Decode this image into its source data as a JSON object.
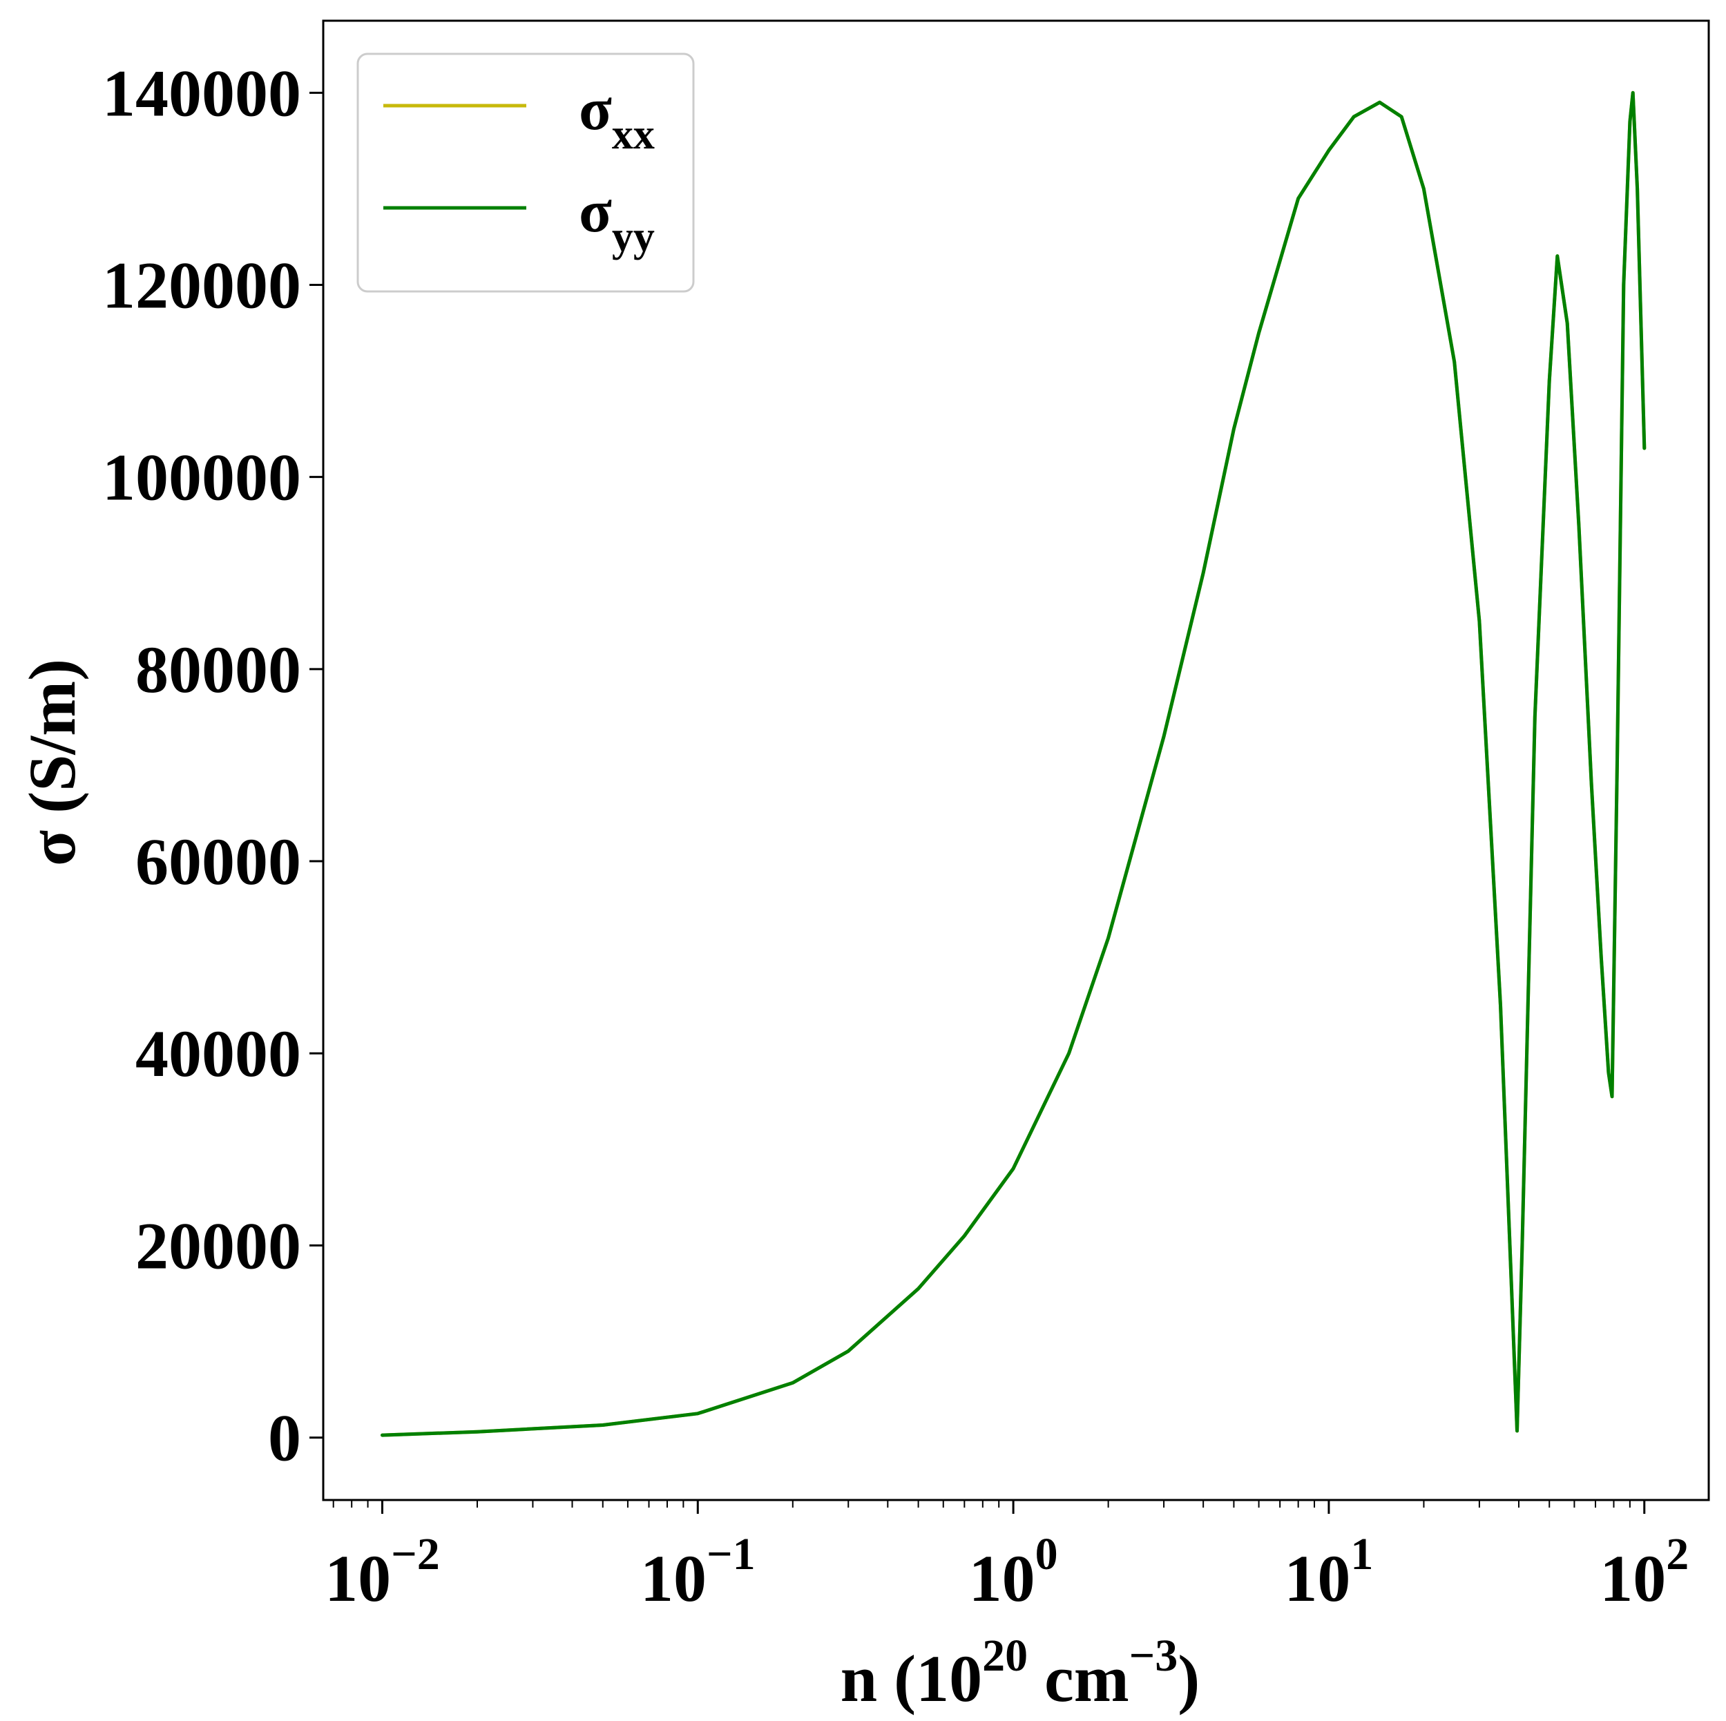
{
  "chart_data": {
    "type": "line",
    "xscale": "log",
    "xlim": [
      0.0065,
      160
    ],
    "ylim": [
      -6500,
      147500
    ],
    "grid": false,
    "legend_placement": "top-left",
    "xlabel": {
      "base": "n (10",
      "exp1": "20",
      "mid": " cm",
      "exp2": "−3",
      "end": ")"
    },
    "ylabel": "σ (S/m)",
    "x_ticks": [
      {
        "value": 0.01,
        "base": "10",
        "exp": "−2"
      },
      {
        "value": 0.1,
        "base": "10",
        "exp": "−1"
      },
      {
        "value": 1,
        "base": "10",
        "exp": "0"
      },
      {
        "value": 10,
        "base": "10",
        "exp": "1"
      },
      {
        "value": 100,
        "base": "10",
        "exp": "2"
      }
    ],
    "y_ticks": [
      {
        "value": 0,
        "label": "0"
      },
      {
        "value": 20000,
        "label": "20000"
      },
      {
        "value": 40000,
        "label": "40000"
      },
      {
        "value": 60000,
        "label": "60000"
      },
      {
        "value": 80000,
        "label": "80000"
      },
      {
        "value": 100000,
        "label": "100000"
      },
      {
        "value": 120000,
        "label": "120000"
      },
      {
        "value": 140000,
        "label": "140000"
      }
    ],
    "series": [
      {
        "name": {
          "base": "σ",
          "sub": "xx"
        },
        "color": "#c7b90b",
        "x": [
          0.01,
          0.02,
          0.05,
          0.1,
          0.2,
          0.3,
          0.5,
          0.7,
          1.0,
          1.5,
          2.0,
          3.0,
          4.0,
          5.0,
          6.0,
          8.0,
          10,
          12,
          14.5,
          17,
          20,
          25,
          30,
          35,
          38,
          39.5,
          41,
          45,
          50,
          53,
          57,
          62,
          68,
          73,
          77,
          79,
          82,
          86,
          90,
          92,
          95,
          100
        ],
        "y": [
          250,
          600,
          1300,
          2500,
          5700,
          9000,
          15500,
          21000,
          28000,
          40000,
          52000,
          73000,
          90000,
          105000,
          115000,
          129000,
          134000,
          137500,
          139000,
          137500,
          130000,
          112000,
          85000,
          45000,
          15000,
          700,
          20000,
          75000,
          110000,
          123000,
          116000,
          95000,
          68000,
          50000,
          38000,
          35500,
          70000,
          120000,
          137000,
          140000,
          130000,
          103000
        ]
      },
      {
        "name": {
          "base": "σ",
          "sub": "yy"
        },
        "color": "#008000",
        "x": [
          0.01,
          0.02,
          0.05,
          0.1,
          0.2,
          0.3,
          0.5,
          0.7,
          1.0,
          1.5,
          2.0,
          3.0,
          4.0,
          5.0,
          6.0,
          8.0,
          10,
          12,
          14.5,
          17,
          20,
          25,
          30,
          35,
          38,
          39.5,
          41,
          45,
          50,
          53,
          57,
          62,
          68,
          73,
          77,
          79,
          82,
          86,
          90,
          92,
          95,
          100
        ],
        "y": [
          250,
          600,
          1300,
          2500,
          5700,
          9000,
          15500,
          21000,
          28000,
          40000,
          52000,
          73000,
          90000,
          105000,
          115000,
          129000,
          134000,
          137500,
          139000,
          137500,
          130000,
          112000,
          85000,
          45000,
          15000,
          700,
          20000,
          75000,
          110000,
          123000,
          116000,
          95000,
          68000,
          50000,
          38000,
          35500,
          70000,
          120000,
          137000,
          140000,
          130000,
          103000
        ]
      }
    ]
  }
}
